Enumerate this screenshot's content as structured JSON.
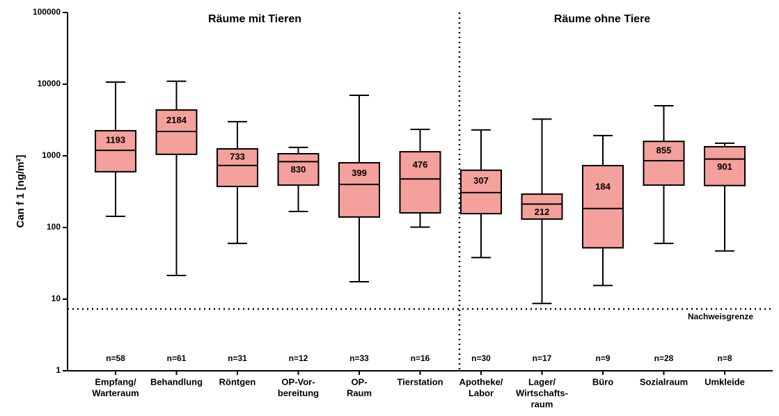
{
  "chart_data": {
    "type": "box",
    "y_label": "Can f 1 [ng/m²]",
    "annotations": [
      "Räume mit Tieren",
      "Räume ohne Tiere"
    ],
    "categories": [
      [
        "Empfang/",
        "Warteraum"
      ],
      [
        "Behandlung"
      ],
      [
        "Röntgen"
      ],
      [
        "OP-Vor-",
        "bereitung"
      ],
      [
        "OP-",
        "Raum"
      ],
      [
        "Tierstation"
      ],
      [
        "Apotheke/",
        "Labor"
      ],
      [
        "Lager/",
        "Wirtschafts-",
        "raum"
      ],
      [
        "Büro"
      ],
      [
        "Sozialraum"
      ],
      [
        "Umkleide"
      ]
    ],
    "n_labels": [
      "n=58",
      "n=61",
      "n=31",
      "n=12",
      "n=33",
      "n=16",
      "n=30",
      "n=17",
      "n=9",
      "n=28",
      "n=8"
    ],
    "min": [
      143,
      21.4,
      60,
      167,
      17.5,
      101,
      38,
      8.7,
      15.5,
      60,
      47
    ],
    "q1": [
      600,
      1050,
      374,
      390,
      140,
      160,
      156,
      131,
      52,
      390,
      385
    ],
    "median": [
      1193,
      2184,
      733,
      830,
      399,
      476,
      307,
      212,
      184,
      855,
      901
    ],
    "q3": [
      2240,
      4360,
      1250,
      1070,
      800,
      1140,
      630,
      292,
      730,
      1590,
      1340
    ],
    "max": [
      10700,
      11000,
      3000,
      1310,
      7000,
      2340,
      2300,
      3250,
      1920,
      5000,
      1500
    ],
    "color": "#f4a09c",
    "ylim": [
      1,
      100000
    ],
    "yticks": [
      1,
      10,
      100,
      1000,
      10000,
      100000
    ],
    "log_y": true,
    "detection_limit": {
      "value": 7.3,
      "label": "Nachweisgrenze"
    }
  }
}
